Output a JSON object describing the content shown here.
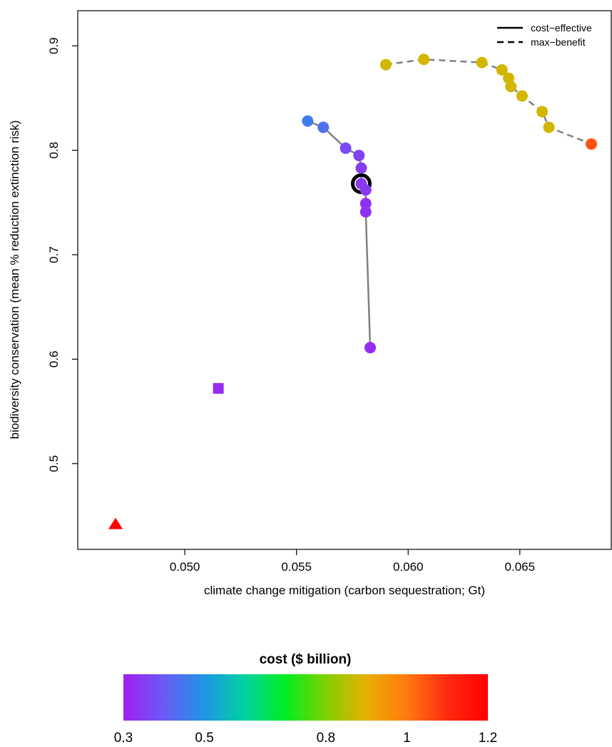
{
  "chart_data": {
    "type": "scatter",
    "title": "",
    "xlabel": "climate change mitigation (carbon sequestration; Gt)",
    "ylabel": "biodiversity conservation (mean % reduction extinction risk)",
    "xlim": [
      0.0461,
      0.0682
    ],
    "ylim": [
      0.437,
      0.9145
    ],
    "xticks": [
      "0.050",
      "0.055",
      "0.060",
      "0.065"
    ],
    "yticks": [
      "0.5",
      "0.6",
      "0.7",
      "0.8",
      "0.9"
    ],
    "legend": {
      "position": "top-right",
      "entries": [
        {
          "label": "cost−effective",
          "linestyle": "solid"
        },
        {
          "label": "max−benefit",
          "linestyle": "dashed"
        }
      ]
    },
    "series": [
      {
        "linestyle": "solid",
        "line_color": "#808080",
        "points": [
          {
            "x": 0.0555,
            "y": 0.828,
            "cost": 0.46
          },
          {
            "x": 0.0562,
            "y": 0.822,
            "cost": 0.44
          },
          {
            "x": 0.0572,
            "y": 0.802,
            "cost": 0.37
          },
          {
            "x": 0.0578,
            "y": 0.795,
            "cost": 0.36
          },
          {
            "x": 0.0579,
            "y": 0.783,
            "cost": 0.35
          },
          {
            "x": 0.0579,
            "y": 0.768,
            "cost": 0.34
          },
          {
            "x": 0.0581,
            "y": 0.762,
            "cost": 0.34
          },
          {
            "x": 0.0581,
            "y": 0.749,
            "cost": 0.33
          },
          {
            "x": 0.0581,
            "y": 0.741,
            "cost": 0.33
          },
          {
            "x": 0.0583,
            "y": 0.611,
            "cost": 0.32
          }
        ]
      },
      {
        "linestyle": "dashed",
        "line_color": "#808080",
        "points": [
          {
            "x": 0.059,
            "y": 0.882,
            "cost": 0.88
          },
          {
            "x": 0.0607,
            "y": 0.887,
            "cost": 0.88
          },
          {
            "x": 0.0633,
            "y": 0.884,
            "cost": 0.88
          },
          {
            "x": 0.0642,
            "y": 0.877,
            "cost": 0.88
          },
          {
            "x": 0.0645,
            "y": 0.869,
            "cost": 0.88
          },
          {
            "x": 0.0646,
            "y": 0.861,
            "cost": 0.88
          },
          {
            "x": 0.0651,
            "y": 0.852,
            "cost": 0.88
          },
          {
            "x": 0.066,
            "y": 0.837,
            "cost": 0.88
          },
          {
            "x": 0.0663,
            "y": 0.822,
            "cost": 0.88
          },
          {
            "x": 0.0682,
            "y": 0.806,
            "cost": 1.05
          }
        ]
      }
    ],
    "highlight_point": {
      "x": 0.0579,
      "y": 0.768
    },
    "extra_points": [
      {
        "shape": "square",
        "x": 0.0515,
        "y": 0.572,
        "cost": 0.32
      },
      {
        "shape": "triangle",
        "x": 0.0469,
        "y": 0.442,
        "cost": 1.2
      }
    ],
    "colorbar": {
      "title": "cost ($ billion)",
      "tick_labels": [
        "0.3",
        "0.5",
        "0.8",
        "1",
        "1.2"
      ],
      "tick_values": [
        0.3,
        0.5,
        0.8,
        1.0,
        1.2
      ],
      "range": [
        0.3,
        1.2
      ],
      "gradient_colors": [
        "#a020f0",
        "#6a5af5",
        "#1e96e6",
        "#00d2a0",
        "#00ee22",
        "#80d000",
        "#e8b000",
        "#ff7a10",
        "#ff2a10",
        "#ff0000"
      ]
    }
  }
}
